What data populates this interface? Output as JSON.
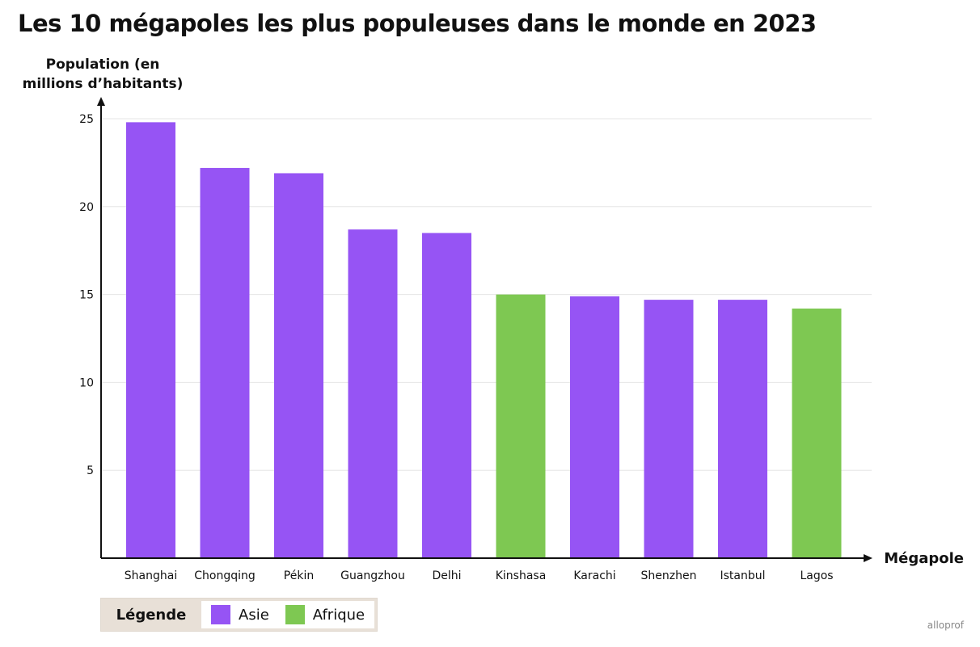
{
  "title": "Les 10 mégapoles les plus populeuses dans le monde en 2023",
  "brand": "alloprof",
  "colors": {
    "asie": "#9654f4",
    "afrique": "#7ec852",
    "grid": "#e6e6e6",
    "axis": "#111111"
  },
  "legend": {
    "title": "Légende",
    "items": [
      {
        "label": "Asie",
        "color": "#9654f4"
      },
      {
        "label": "Afrique",
        "color": "#7ec852"
      }
    ]
  },
  "chart_data": {
    "type": "bar",
    "title": "Les 10 mégapoles les plus populeuses dans le monde en 2023",
    "ylabel": "Population (en millions d’habitants)",
    "xlabel": "Mégapole",
    "ylim": [
      0,
      25
    ],
    "yticks": [
      5,
      10,
      15,
      20,
      25
    ],
    "grid": true,
    "legend_placement": "bottom-left",
    "categories": [
      "Shanghai",
      "Chongqing",
      "Pékin",
      "Guangzhou",
      "Delhi",
      "Kinshasa",
      "Karachi",
      "Shenzhen",
      "Istanbul",
      "Lagos"
    ],
    "values": [
      24.8,
      22.2,
      21.9,
      18.7,
      18.5,
      15.0,
      14.9,
      14.7,
      14.7,
      14.2
    ],
    "groups": [
      "Asie",
      "Asie",
      "Asie",
      "Asie",
      "Asie",
      "Afrique",
      "Asie",
      "Asie",
      "Asie",
      "Afrique"
    ]
  }
}
